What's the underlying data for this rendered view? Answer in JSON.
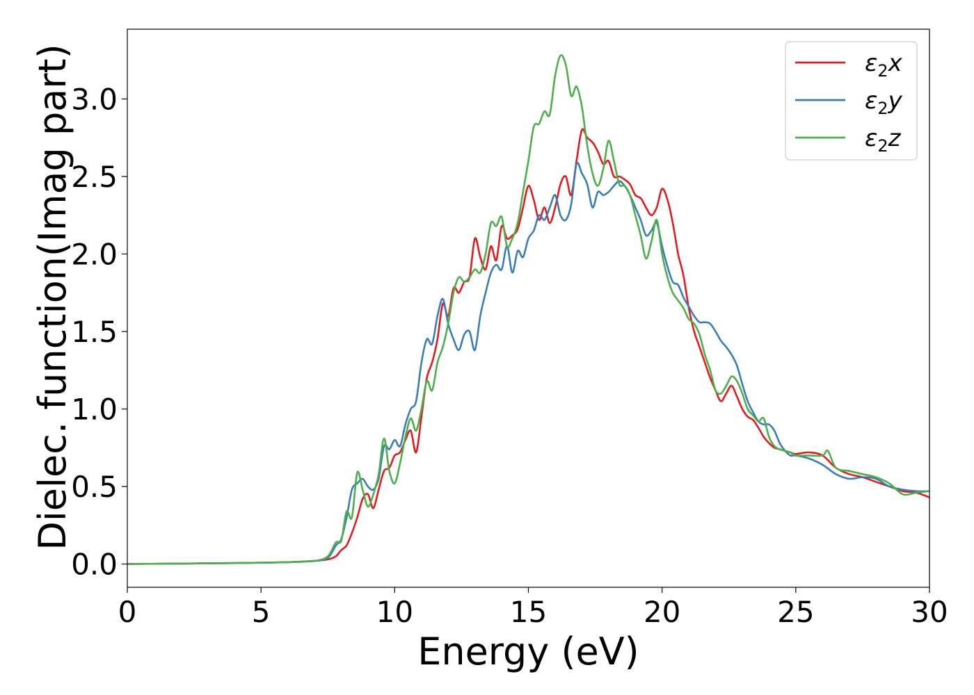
{
  "chart_data": {
    "type": "line",
    "xlabel": "Energy (eV)",
    "ylabel": "Dielec. function(Imag part)",
    "xlim": [
      0,
      30
    ],
    "ylim": [
      -0.15,
      3.45
    ],
    "x_ticks": [
      "0",
      "5",
      "10",
      "15",
      "20",
      "25",
      "30"
    ],
    "y_ticks": [
      "0.0",
      "0.5",
      "1.0",
      "1.5",
      "2.0",
      "2.5",
      "3.0"
    ],
    "grid": false,
    "legend_position": "top-right",
    "series": [
      {
        "name": "ε2x",
        "label_main": "ε",
        "label_sub": "2",
        "label_tail": "x",
        "color": "#e41a1c",
        "points": [
          [
            0,
            0
          ],
          [
            2,
            0.003
          ],
          [
            4,
            0.006
          ],
          [
            6,
            0.012
          ],
          [
            7,
            0.02
          ],
          [
            7.5,
            0.03
          ],
          [
            7.8,
            0.05
          ],
          [
            8,
            0.09
          ],
          [
            8.2,
            0.12
          ],
          [
            8.4,
            0.2
          ],
          [
            8.6,
            0.3
          ],
          [
            8.8,
            0.42
          ],
          [
            9.0,
            0.45
          ],
          [
            9.2,
            0.36
          ],
          [
            9.4,
            0.48
          ],
          [
            9.6,
            0.6
          ],
          [
            9.8,
            0.62
          ],
          [
            10.0,
            0.7
          ],
          [
            10.2,
            0.72
          ],
          [
            10.4,
            0.8
          ],
          [
            10.6,
            0.86
          ],
          [
            10.8,
            0.72
          ],
          [
            11.0,
            0.95
          ],
          [
            11.2,
            1.2
          ],
          [
            11.4,
            1.3
          ],
          [
            11.6,
            1.45
          ],
          [
            11.8,
            1.68
          ],
          [
            12.0,
            1.6
          ],
          [
            12.2,
            1.78
          ],
          [
            12.4,
            1.75
          ],
          [
            12.6,
            1.82
          ],
          [
            12.8,
            1.85
          ],
          [
            13.0,
            2.1
          ],
          [
            13.2,
            1.98
          ],
          [
            13.4,
            1.9
          ],
          [
            13.6,
            2.05
          ],
          [
            13.8,
            1.96
          ],
          [
            14.0,
            2.18
          ],
          [
            14.2,
            2.1
          ],
          [
            14.4,
            2.12
          ],
          [
            14.6,
            2.16
          ],
          [
            14.8,
            2.3
          ],
          [
            15.0,
            2.44
          ],
          [
            15.2,
            2.35
          ],
          [
            15.4,
            2.22
          ],
          [
            15.6,
            2.3
          ],
          [
            15.8,
            2.2
          ],
          [
            16.0,
            2.3
          ],
          [
            16.2,
            2.45
          ],
          [
            16.4,
            2.5
          ],
          [
            16.6,
            2.38
          ],
          [
            16.8,
            2.6
          ],
          [
            17.0,
            2.8
          ],
          [
            17.2,
            2.75
          ],
          [
            17.4,
            2.72
          ],
          [
            17.6,
            2.66
          ],
          [
            17.8,
            2.58
          ],
          [
            18.0,
            2.6
          ],
          [
            18.2,
            2.5
          ],
          [
            18.4,
            2.5
          ],
          [
            18.6,
            2.48
          ],
          [
            18.8,
            2.45
          ],
          [
            19.0,
            2.38
          ],
          [
            19.2,
            2.36
          ],
          [
            19.4,
            2.3
          ],
          [
            19.6,
            2.25
          ],
          [
            19.8,
            2.3
          ],
          [
            20.0,
            2.42
          ],
          [
            20.2,
            2.35
          ],
          [
            20.4,
            2.2
          ],
          [
            20.6,
            2.0
          ],
          [
            20.8,
            1.86
          ],
          [
            21.0,
            1.65
          ],
          [
            21.2,
            1.5
          ],
          [
            21.4,
            1.4
          ],
          [
            21.6,
            1.3
          ],
          [
            21.8,
            1.2
          ],
          [
            22.0,
            1.12
          ],
          [
            22.2,
            1.05
          ],
          [
            22.4,
            1.1
          ],
          [
            22.6,
            1.15
          ],
          [
            22.8,
            1.08
          ],
          [
            23.0,
            1.0
          ],
          [
            23.2,
            0.95
          ],
          [
            23.4,
            0.93
          ],
          [
            23.6,
            0.88
          ],
          [
            23.8,
            0.82
          ],
          [
            24.0,
            0.78
          ],
          [
            24.2,
            0.75
          ],
          [
            24.4,
            0.74
          ],
          [
            24.6,
            0.73
          ],
          [
            24.8,
            0.72
          ],
          [
            25.0,
            0.71
          ],
          [
            25.5,
            0.72
          ],
          [
            26.0,
            0.7
          ],
          [
            26.5,
            0.62
          ],
          [
            27.0,
            0.58
          ],
          [
            27.5,
            0.56
          ],
          [
            28.0,
            0.53
          ],
          [
            28.5,
            0.5
          ],
          [
            29.0,
            0.47
          ],
          [
            29.5,
            0.46
          ],
          [
            30.0,
            0.43
          ]
        ]
      },
      {
        "name": "ε2y",
        "label_main": "ε",
        "label_sub": "2",
        "label_tail": "y",
        "color": "#377eb8",
        "points": [
          [
            0,
            0
          ],
          [
            2,
            0.003
          ],
          [
            4,
            0.006
          ],
          [
            6,
            0.012
          ],
          [
            7,
            0.02
          ],
          [
            7.5,
            0.04
          ],
          [
            7.8,
            0.12
          ],
          [
            8.0,
            0.16
          ],
          [
            8.2,
            0.3
          ],
          [
            8.4,
            0.48
          ],
          [
            8.6,
            0.52
          ],
          [
            8.8,
            0.55
          ],
          [
            9.0,
            0.5
          ],
          [
            9.2,
            0.48
          ],
          [
            9.4,
            0.55
          ],
          [
            9.6,
            0.76
          ],
          [
            9.8,
            0.74
          ],
          [
            10.0,
            0.8
          ],
          [
            10.2,
            0.76
          ],
          [
            10.4,
            0.9
          ],
          [
            10.6,
            1.0
          ],
          [
            10.8,
            1.05
          ],
          [
            11.0,
            1.3
          ],
          [
            11.2,
            1.45
          ],
          [
            11.4,
            1.42
          ],
          [
            11.6,
            1.6
          ],
          [
            11.8,
            1.71
          ],
          [
            12.0,
            1.55
          ],
          [
            12.2,
            1.45
          ],
          [
            12.4,
            1.38
          ],
          [
            12.6,
            1.48
          ],
          [
            12.8,
            1.5
          ],
          [
            13.0,
            1.38
          ],
          [
            13.2,
            1.6
          ],
          [
            13.4,
            1.75
          ],
          [
            13.6,
            1.88
          ],
          [
            13.8,
            1.93
          ],
          [
            14.0,
            1.9
          ],
          [
            14.2,
            2.05
          ],
          [
            14.4,
            1.88
          ],
          [
            14.6,
            2.02
          ],
          [
            14.8,
            1.98
          ],
          [
            15.0,
            2.1
          ],
          [
            15.2,
            2.15
          ],
          [
            15.4,
            2.25
          ],
          [
            15.6,
            2.22
          ],
          [
            15.8,
            2.3
          ],
          [
            16.0,
            2.38
          ],
          [
            16.2,
            2.25
          ],
          [
            16.4,
            2.22
          ],
          [
            16.6,
            2.32
          ],
          [
            16.8,
            2.58
          ],
          [
            17.0,
            2.52
          ],
          [
            17.2,
            2.45
          ],
          [
            17.4,
            2.3
          ],
          [
            17.6,
            2.4
          ],
          [
            17.8,
            2.38
          ],
          [
            18.0,
            2.4
          ],
          [
            18.2,
            2.44
          ],
          [
            18.4,
            2.47
          ],
          [
            18.6,
            2.44
          ],
          [
            18.8,
            2.38
          ],
          [
            19.0,
            2.3
          ],
          [
            19.2,
            2.22
          ],
          [
            19.4,
            2.12
          ],
          [
            19.6,
            2.15
          ],
          [
            19.8,
            2.2
          ],
          [
            20.0,
            2.05
          ],
          [
            20.2,
            1.92
          ],
          [
            20.4,
            1.82
          ],
          [
            20.6,
            1.8
          ],
          [
            20.8,
            1.72
          ],
          [
            21.0,
            1.66
          ],
          [
            21.2,
            1.6
          ],
          [
            21.4,
            1.56
          ],
          [
            21.6,
            1.56
          ],
          [
            21.8,
            1.55
          ],
          [
            22.0,
            1.5
          ],
          [
            22.2,
            1.44
          ],
          [
            22.4,
            1.4
          ],
          [
            22.6,
            1.35
          ],
          [
            22.8,
            1.28
          ],
          [
            23.0,
            1.16
          ],
          [
            23.2,
            1.05
          ],
          [
            23.4,
            0.98
          ],
          [
            23.6,
            0.92
          ],
          [
            23.8,
            0.9
          ],
          [
            24.0,
            0.9
          ],
          [
            24.2,
            0.86
          ],
          [
            24.4,
            0.78
          ],
          [
            24.6,
            0.73
          ],
          [
            24.8,
            0.7
          ],
          [
            25.0,
            0.7
          ],
          [
            25.5,
            0.68
          ],
          [
            26.0,
            0.64
          ],
          [
            26.5,
            0.58
          ],
          [
            27.0,
            0.55
          ],
          [
            27.5,
            0.56
          ],
          [
            28.0,
            0.55
          ],
          [
            28.5,
            0.5
          ],
          [
            29.0,
            0.48
          ],
          [
            29.5,
            0.47
          ],
          [
            30.0,
            0.47
          ]
        ]
      },
      {
        "name": "ε2z",
        "label_main": "ε",
        "label_sub": "2",
        "label_tail": "z",
        "color": "#4daf4a",
        "points": [
          [
            0,
            0
          ],
          [
            2,
            0.003
          ],
          [
            4,
            0.006
          ],
          [
            6,
            0.012
          ],
          [
            7,
            0.02
          ],
          [
            7.5,
            0.05
          ],
          [
            7.8,
            0.14
          ],
          [
            8.0,
            0.15
          ],
          [
            8.2,
            0.34
          ],
          [
            8.4,
            0.3
          ],
          [
            8.6,
            0.59
          ],
          [
            8.8,
            0.48
          ],
          [
            9.0,
            0.37
          ],
          [
            9.2,
            0.45
          ],
          [
            9.4,
            0.58
          ],
          [
            9.6,
            0.81
          ],
          [
            9.8,
            0.6
          ],
          [
            10.0,
            0.52
          ],
          [
            10.2,
            0.65
          ],
          [
            10.4,
            0.82
          ],
          [
            10.6,
            0.94
          ],
          [
            10.8,
            0.86
          ],
          [
            11.0,
            1.0
          ],
          [
            11.2,
            1.18
          ],
          [
            11.4,
            1.12
          ],
          [
            11.6,
            1.3
          ],
          [
            11.8,
            1.4
          ],
          [
            12.0,
            1.55
          ],
          [
            12.2,
            1.75
          ],
          [
            12.4,
            1.85
          ],
          [
            12.6,
            1.82
          ],
          [
            12.8,
            1.85
          ],
          [
            13.0,
            1.9
          ],
          [
            13.2,
            1.88
          ],
          [
            13.4,
            2.0
          ],
          [
            13.6,
            2.2
          ],
          [
            13.8,
            2.18
          ],
          [
            14.0,
            2.24
          ],
          [
            14.2,
            2.05
          ],
          [
            14.4,
            2.1
          ],
          [
            14.6,
            2.2
          ],
          [
            14.8,
            2.4
          ],
          [
            15.0,
            2.6
          ],
          [
            15.2,
            2.82
          ],
          [
            15.4,
            2.84
          ],
          [
            15.6,
            2.92
          ],
          [
            15.8,
            2.9
          ],
          [
            16.0,
            3.15
          ],
          [
            16.2,
            3.28
          ],
          [
            16.4,
            3.22
          ],
          [
            16.6,
            3.02
          ],
          [
            16.8,
            3.08
          ],
          [
            17.0,
            2.95
          ],
          [
            17.2,
            2.7
          ],
          [
            17.4,
            2.52
          ],
          [
            17.6,
            2.44
          ],
          [
            17.8,
            2.55
          ],
          [
            18.0,
            2.73
          ],
          [
            18.2,
            2.6
          ],
          [
            18.4,
            2.45
          ],
          [
            18.6,
            2.44
          ],
          [
            18.8,
            2.38
          ],
          [
            19.0,
            2.25
          ],
          [
            19.2,
            2.12
          ],
          [
            19.4,
            1.97
          ],
          [
            19.6,
            2.08
          ],
          [
            19.8,
            2.22
          ],
          [
            20.0,
            2.0
          ],
          [
            20.2,
            1.85
          ],
          [
            20.4,
            1.75
          ],
          [
            20.6,
            1.7
          ],
          [
            20.8,
            1.65
          ],
          [
            21.0,
            1.58
          ],
          [
            21.2,
            1.55
          ],
          [
            21.4,
            1.48
          ],
          [
            21.6,
            1.35
          ],
          [
            21.8,
            1.25
          ],
          [
            22.0,
            1.12
          ],
          [
            22.2,
            1.1
          ],
          [
            22.4,
            1.15
          ],
          [
            22.6,
            1.21
          ],
          [
            22.8,
            1.18
          ],
          [
            23.0,
            1.1
          ],
          [
            23.2,
            1.0
          ],
          [
            23.4,
            0.96
          ],
          [
            23.6,
            0.92
          ],
          [
            23.8,
            0.94
          ],
          [
            24.0,
            0.82
          ],
          [
            24.2,
            0.76
          ],
          [
            24.4,
            0.74
          ],
          [
            24.6,
            0.73
          ],
          [
            24.8,
            0.72
          ],
          [
            25.0,
            0.7
          ],
          [
            25.5,
            0.7
          ],
          [
            26.0,
            0.7
          ],
          [
            26.2,
            0.73
          ],
          [
            26.5,
            0.62
          ],
          [
            27.0,
            0.6
          ],
          [
            27.5,
            0.58
          ],
          [
            28.0,
            0.56
          ],
          [
            28.5,
            0.52
          ],
          [
            29.0,
            0.45
          ],
          [
            29.5,
            0.46
          ],
          [
            30.0,
            0.47
          ]
        ]
      }
    ]
  }
}
